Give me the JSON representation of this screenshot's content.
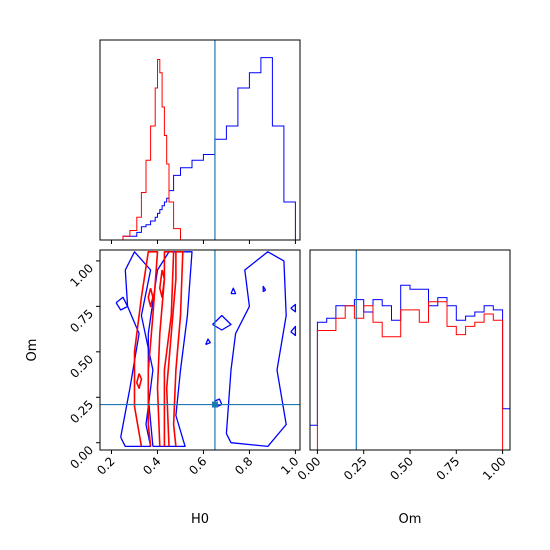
{
  "chart_data": {
    "type": "corner",
    "params": [
      "H0",
      "Om"
    ],
    "truth": {
      "H0": 0.65,
      "Om": 0.21
    },
    "series": [
      {
        "color": "#ff0000"
      },
      {
        "color": "#0000ff"
      }
    ],
    "hist_h0": {
      "x_range": [
        0.15,
        1.02
      ],
      "bins": [
        0.25,
        0.28,
        0.31,
        0.33,
        0.35,
        0.37,
        0.39,
        0.4,
        0.41,
        0.42,
        0.43,
        0.44,
        0.45,
        0.47,
        0.5,
        0.55,
        0.6,
        0.65,
        0.7,
        0.75,
        0.8,
        0.85,
        0.9,
        0.95,
        1.0
      ],
      "red": [
        0.02,
        0.05,
        0.12,
        0.25,
        0.42,
        0.6,
        0.8,
        0.95,
        0.88,
        0.7,
        0.55,
        0.4,
        0.2,
        0.06,
        0.0,
        0.0,
        0.0,
        0.0,
        0.0,
        0.0,
        0.0,
        0.0,
        0.0,
        0.0
      ],
      "blue": [
        0.02,
        0.02,
        0.04,
        0.07,
        0.08,
        0.1,
        0.12,
        0.14,
        0.16,
        0.18,
        0.2,
        0.22,
        0.26,
        0.34,
        0.38,
        0.42,
        0.45,
        0.53,
        0.6,
        0.8,
        0.88,
        0.96,
        0.6,
        0.2
      ]
    },
    "hist_om": {
      "x_range": [
        -0.04,
        1.04
      ],
      "bins": [
        -0.04,
        0.0,
        0.05,
        0.1,
        0.15,
        0.2,
        0.25,
        0.3,
        0.35,
        0.4,
        0.45,
        0.5,
        0.55,
        0.6,
        0.65,
        0.7,
        0.75,
        0.8,
        0.85,
        0.9,
        0.95,
        1.0,
        1.04
      ],
      "red": [
        0.0,
        0.58,
        0.58,
        0.64,
        0.7,
        0.64,
        0.7,
        0.62,
        0.55,
        0.55,
        0.68,
        0.68,
        0.62,
        0.72,
        0.72,
        0.6,
        0.56,
        0.6,
        0.62,
        0.66,
        0.63,
        0.0
      ],
      "blue": [
        0.12,
        0.62,
        0.64,
        0.7,
        0.7,
        0.73,
        0.67,
        0.73,
        0.7,
        0.63,
        0.8,
        0.78,
        0.78,
        0.7,
        0.74,
        0.7,
        0.63,
        0.65,
        0.67,
        0.7,
        0.68,
        0.2
      ]
    },
    "contours": {
      "red": [
        [
          [
            0.33,
            -0.02
          ],
          [
            0.3,
            0.2
          ],
          [
            0.3,
            0.5
          ],
          [
            0.33,
            0.8
          ],
          [
            0.36,
            1.05
          ],
          [
            0.4,
            1.05
          ],
          [
            0.38,
            0.7
          ],
          [
            0.36,
            0.4
          ],
          [
            0.36,
            0.1
          ],
          [
            0.37,
            -0.02
          ]
        ],
        [
          [
            0.41,
            -0.02
          ],
          [
            0.4,
            0.3
          ],
          [
            0.41,
            0.6
          ],
          [
            0.43,
            0.9
          ],
          [
            0.43,
            1.05
          ],
          [
            0.47,
            1.05
          ],
          [
            0.46,
            0.7
          ],
          [
            0.43,
            0.4
          ],
          [
            0.43,
            0.1
          ],
          [
            0.43,
            -0.02
          ]
        ],
        [
          [
            0.45,
            -0.02
          ],
          [
            0.44,
            0.3
          ],
          [
            0.46,
            0.6
          ],
          [
            0.48,
            0.9
          ],
          [
            0.48,
            1.05
          ],
          [
            0.51,
            1.05
          ],
          [
            0.5,
            0.7
          ],
          [
            0.48,
            0.4
          ],
          [
            0.47,
            0.1
          ],
          [
            0.48,
            -0.02
          ]
        ],
        [
          [
            0.42,
            0.95
          ],
          [
            0.41,
            0.85
          ],
          [
            0.42,
            0.8
          ],
          [
            0.43,
            0.9
          ],
          [
            0.42,
            0.95
          ]
        ],
        [
          [
            0.37,
            0.85
          ],
          [
            0.36,
            0.8
          ],
          [
            0.37,
            0.75
          ],
          [
            0.38,
            0.8
          ],
          [
            0.37,
            0.85
          ]
        ],
        [
          [
            0.32,
            0.38
          ],
          [
            0.31,
            0.33
          ],
          [
            0.32,
            0.3
          ],
          [
            0.33,
            0.35
          ],
          [
            0.32,
            0.38
          ]
        ]
      ],
      "blue": [
        [
          [
            0.24,
            0.03
          ],
          [
            0.28,
            0.3
          ],
          [
            0.32,
            0.6
          ],
          [
            0.27,
            0.75
          ],
          [
            0.26,
            0.95
          ],
          [
            0.3,
            1.05
          ],
          [
            0.37,
            0.95
          ],
          [
            0.33,
            0.7
          ],
          [
            0.38,
            0.4
          ],
          [
            0.35,
            0.1
          ],
          [
            0.37,
            -0.02
          ],
          [
            0.26,
            -0.02
          ],
          [
            0.24,
            0.03
          ]
        ],
        [
          [
            0.38,
            -0.02
          ],
          [
            0.36,
            0.25
          ],
          [
            0.36,
            0.6
          ],
          [
            0.4,
            0.95
          ],
          [
            0.45,
            1.05
          ],
          [
            0.55,
            1.05
          ],
          [
            0.53,
            0.7
          ],
          [
            0.5,
            0.4
          ],
          [
            0.48,
            0.15
          ],
          [
            0.52,
            -0.02
          ],
          [
            0.38,
            -0.02
          ]
        ],
        [
          [
            0.7,
            0.05
          ],
          [
            0.72,
            0.4
          ],
          [
            0.74,
            0.6
          ],
          [
            0.8,
            0.75
          ],
          [
            0.78,
            0.95
          ],
          [
            0.88,
            1.05
          ],
          [
            0.95,
            1.0
          ],
          [
            0.96,
            0.7
          ],
          [
            0.92,
            0.4
          ],
          [
            0.96,
            0.1
          ],
          [
            0.88,
            -0.02
          ],
          [
            0.72,
            0.0
          ],
          [
            0.7,
            0.05
          ]
        ],
        [
          [
            0.64,
            0.65
          ],
          [
            0.68,
            0.7
          ],
          [
            0.72,
            0.65
          ],
          [
            0.68,
            0.62
          ],
          [
            0.64,
            0.65
          ]
        ],
        [
          [
            0.22,
            0.77
          ],
          [
            0.25,
            0.8
          ],
          [
            0.27,
            0.75
          ],
          [
            0.24,
            0.73
          ],
          [
            0.22,
            0.77
          ]
        ],
        [
          [
            0.66,
            0.2
          ],
          [
            0.65,
            0.23
          ],
          [
            0.67,
            0.24
          ],
          [
            0.68,
            0.21
          ],
          [
            0.66,
            0.2
          ]
        ],
        [
          [
            0.72,
            0.82
          ],
          [
            0.73,
            0.85
          ],
          [
            0.74,
            0.82
          ],
          [
            0.72,
            0.82
          ]
        ],
        [
          [
            0.86,
            0.83
          ],
          [
            0.86,
            0.86
          ],
          [
            0.87,
            0.84
          ],
          [
            0.86,
            0.83
          ]
        ],
        [
          [
            0.61,
            0.54
          ],
          [
            0.62,
            0.57
          ],
          [
            0.63,
            0.55
          ],
          [
            0.61,
            0.54
          ]
        ],
        [
          [
            0.98,
            0.61
          ],
          [
            1.0,
            0.64
          ],
          [
            1.0,
            0.59
          ],
          [
            0.98,
            0.61
          ]
        ],
        [
          [
            0.98,
            0.74
          ],
          [
            1.0,
            0.76
          ],
          [
            1.0,
            0.72
          ],
          [
            0.98,
            0.74
          ]
        ]
      ]
    },
    "joint_axes": {
      "x_range": [
        0.15,
        1.02
      ],
      "y_range": [
        -0.04,
        1.06
      ],
      "x_ticks": [
        "0.2",
        "0.4",
        "0.6",
        "0.8",
        "1.0"
      ],
      "x_tick_values": [
        0.2,
        0.4,
        0.6,
        0.8,
        1.0
      ],
      "y_ticks": [
        "0.00",
        "0.25",
        "0.50",
        "0.75",
        "1.00"
      ],
      "y_tick_values": [
        0.0,
        0.25,
        0.5,
        0.75,
        1.0
      ]
    },
    "om_axes": {
      "x_ticks": [
        "0.00",
        "0.25",
        "0.50",
        "0.75",
        "1.00"
      ],
      "x_tick_values": [
        0.0,
        0.25,
        0.5,
        0.75,
        1.0
      ]
    },
    "xlabel_h0": "H0",
    "xlabel_om": "Om",
    "ylabel_om": "Om"
  }
}
